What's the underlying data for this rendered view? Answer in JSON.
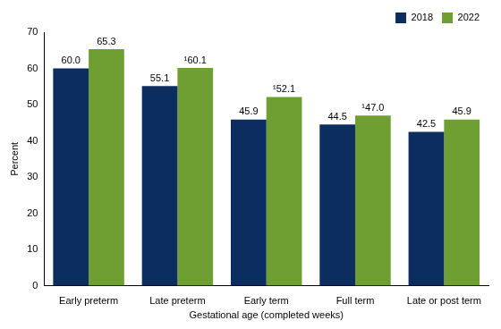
{
  "chart_data": {
    "type": "bar",
    "categories": [
      "Early preterm",
      "Late preterm",
      "Early term",
      "Full term",
      "Late or post term"
    ],
    "series": [
      {
        "name": "2018",
        "color": "#0c2d5f",
        "values": [
          60.0,
          55.1,
          45.9,
          44.5,
          42.5
        ],
        "value_labels": [
          "60.0",
          "55.1",
          "45.9",
          "44.5",
          "42.5"
        ]
      },
      {
        "name": "2022",
        "color": "#6f9f33",
        "values": [
          65.3,
          60.1,
          52.1,
          47.0,
          45.9
        ],
        "value_labels": [
          "65.3",
          "¹60.1",
          "¹52.1",
          "¹47.0",
          "45.9"
        ]
      }
    ],
    "xlabel": "Gestational age (completed weeks)",
    "ylabel": "Percent",
    "ylim": [
      0,
      70
    ],
    "yticks": [
      0,
      10,
      20,
      30,
      40,
      50,
      60,
      70
    ],
    "grid": false,
    "legend": "top-right",
    "data_labels": true
  }
}
